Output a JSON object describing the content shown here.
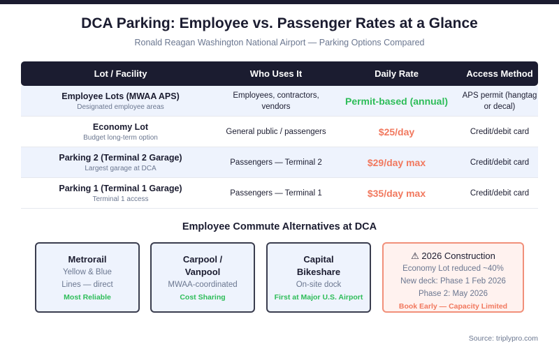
{
  "title": "DCA Parking: Employee vs. Passenger Rates at a Glance",
  "subtitle": "Ronald Reagan Washington National Airport — Parking Options Compared",
  "table": {
    "headers": [
      "Lot / Facility",
      "Who Uses It",
      "Daily Rate",
      "Access Method"
    ],
    "rows": [
      {
        "name": "Employee Lots (MWAA APS)",
        "sub": "Designated employee areas",
        "who": "Employees, contractors, vendors",
        "rate": "Permit-based (annual)",
        "rate_color": "#2ebd59",
        "access": "APS permit (hangtag or decal)"
      },
      {
        "name": "Economy Lot",
        "sub": "Budget long-term option",
        "who": "General public / passengers",
        "rate": "$25/day",
        "rate_color": "#f1785e",
        "access": "Credit/debit card"
      },
      {
        "name": "Parking 2 (Terminal 2 Garage)",
        "sub": "Largest garage at DCA",
        "who": "Passengers — Terminal 2",
        "rate": "$29/day max",
        "rate_color": "#f1785e",
        "access": "Credit/debit card"
      },
      {
        "name": "Parking 1 (Terminal 1 Garage)",
        "sub": "Terminal 1 access",
        "who": "Passengers — Terminal 1",
        "rate": "$35/day max",
        "rate_color": "#f1785e",
        "access": "Credit/debit card"
      }
    ]
  },
  "section_title": "Employee Commute Alternatives at DCA",
  "cards": [
    {
      "title": "Metrorail",
      "lines": [
        "Yellow & Blue",
        "Lines — direct"
      ],
      "tag": "Most Reliable"
    },
    {
      "title": "Carpool / Vanpool",
      "lines": [
        "MWAA-coordinated"
      ],
      "tag": "Cost Sharing"
    },
    {
      "title": "Capital Bikeshare",
      "lines": [
        "On-site dock"
      ],
      "tag": "First at Major U.S. Airport"
    },
    {
      "title": "2026 Construction",
      "icon": "warning-icon",
      "lines": [
        "Economy Lot reduced ~40%",
        "New deck: Phase 1 Feb 2026",
        "Phase 2: May 2026"
      ],
      "tag": "Book Early — Capacity Limited"
    }
  ],
  "source": "Source: triplypro.com"
}
